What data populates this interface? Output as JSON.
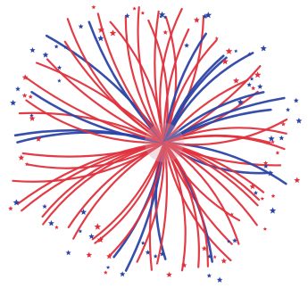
{
  "image": {
    "subject": "firework-burst",
    "background_color": "#ffffff",
    "colors": {
      "red": "#e0313d",
      "blue": "#2c44a6",
      "core": "#d7a2b1"
    },
    "elements": {
      "streaks": "curved-red-and-blue-rays",
      "stars": "small-red-and-blue-five-point-stars"
    }
  }
}
